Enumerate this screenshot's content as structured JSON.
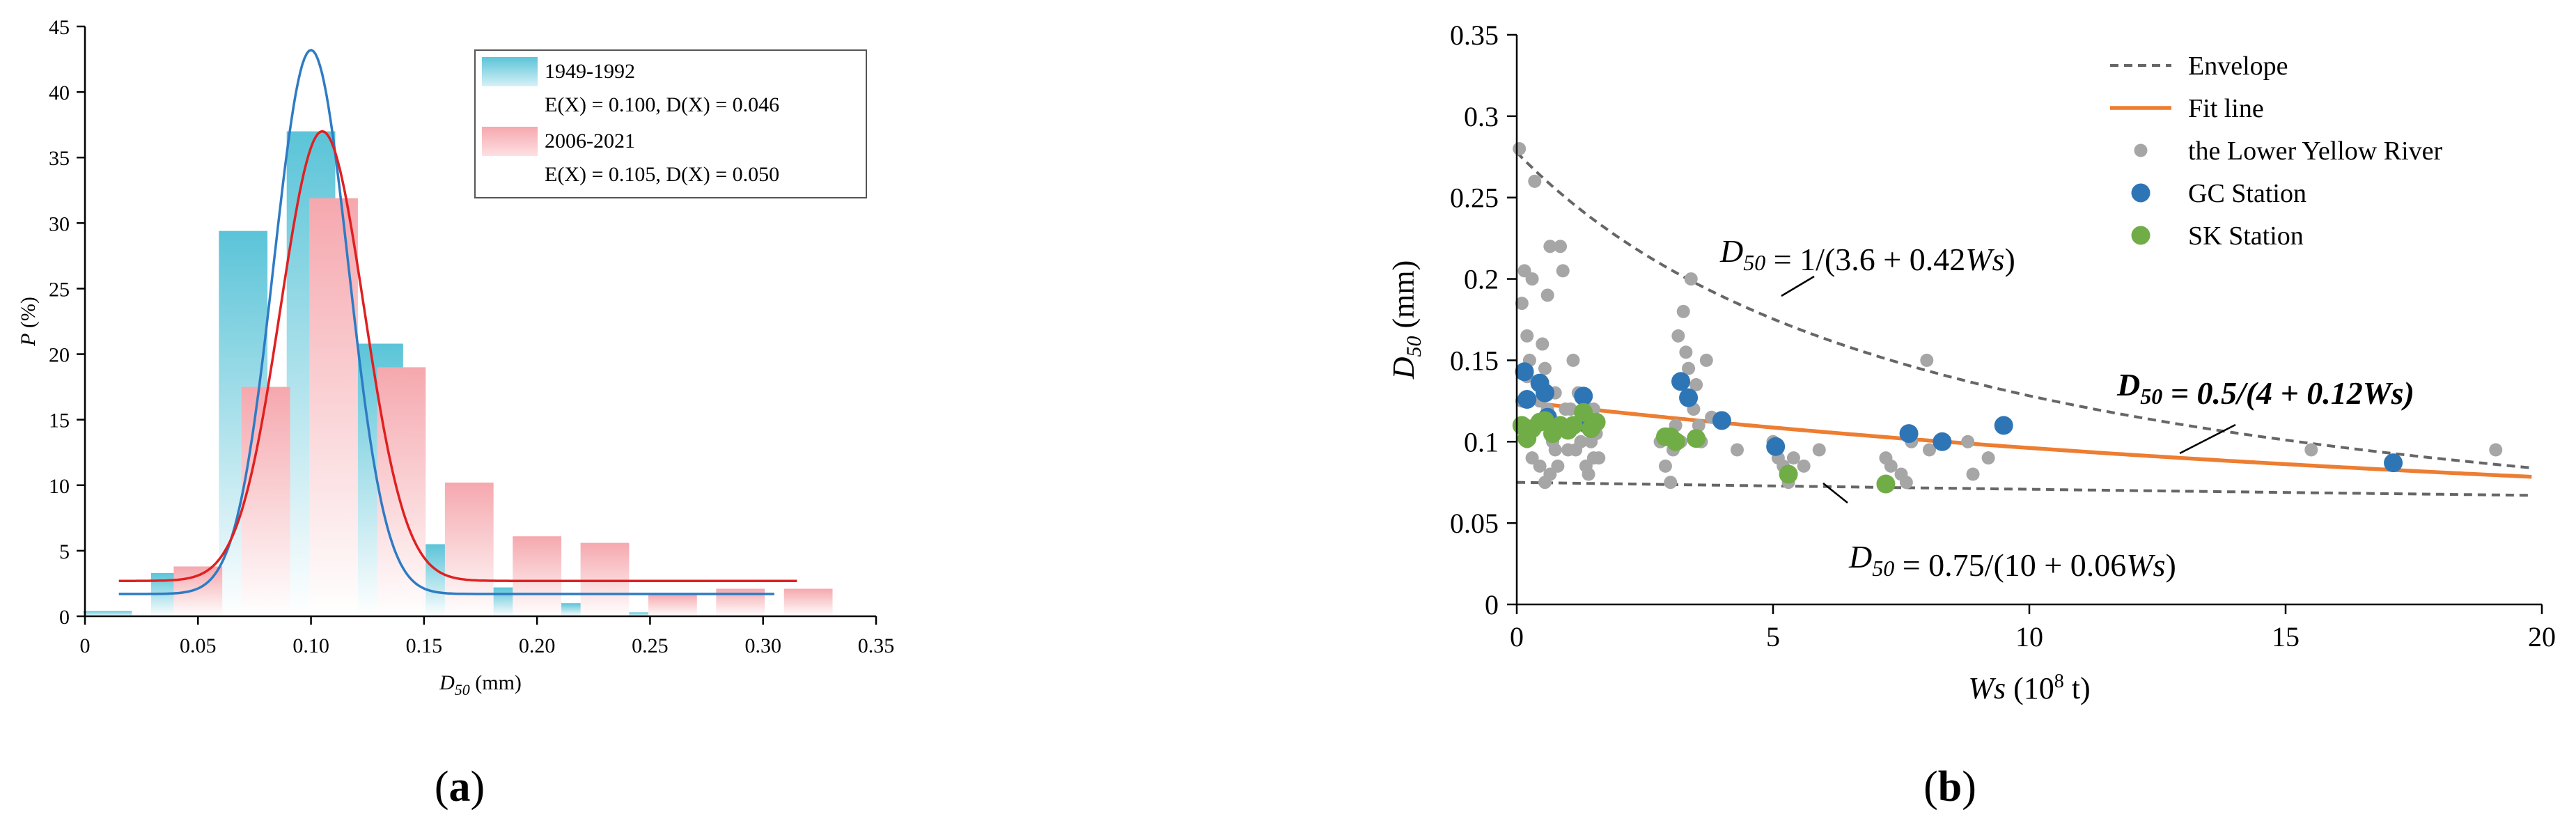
{
  "chart_data": [
    {
      "panel_label": "(a)",
      "type": "bar",
      "xlabel": "D50 (mm)",
      "ylabel": "P (%)",
      "xlim": [
        0,
        0.35
      ],
      "ylim": [
        0,
        45
      ],
      "xticks": [
        0,
        0.05,
        0.1,
        0.15,
        0.2,
        0.25,
        0.3,
        0.35
      ],
      "xtick_labels": [
        "0",
        "0.05",
        "0.10",
        "0.15",
        "0.20",
        "0.25",
        "0.30",
        "0.35"
      ],
      "yticks": [
        0,
        5,
        10,
        15,
        20,
        25,
        30,
        35,
        40,
        45
      ],
      "grid": false,
      "legend_position": "top-right",
      "series": [
        {
          "name": "1949-1992",
          "stats": "E(X) = 0.100, D(X) = 0.046",
          "color": "#5bc4d8",
          "bar_centers": [
            0.01,
            0.04,
            0.07,
            0.1,
            0.13,
            0.16,
            0.19,
            0.22,
            0.25,
            0.28
          ],
          "values": [
            0.4,
            3.3,
            29.4,
            37.0,
            20.8,
            5.5,
            2.2,
            1.0,
            0.3,
            0.0
          ],
          "fit_curve_color": "#2e7bc4",
          "fit_curve": {
            "mean": 0.1,
            "peak": 43.2,
            "sigma": 0.0165,
            "baseline": 1.7,
            "x_range": [
              0.015,
              0.305
            ]
          }
        },
        {
          "name": "2006-2021",
          "stats": "E(X) = 0.105, D(X) = 0.050",
          "color": "#f5a8ae",
          "bar_centers": [
            0.05,
            0.08,
            0.11,
            0.14,
            0.17,
            0.2,
            0.23,
            0.26,
            0.29,
            0.32
          ],
          "values": [
            3.8,
            17.5,
            31.9,
            19.0,
            10.2,
            6.1,
            5.6,
            1.7,
            2.1,
            2.1
          ],
          "fit_curve_color": "#e02020",
          "fit_curve": {
            "mean": 0.105,
            "peak": 37.0,
            "sigma": 0.0185,
            "baseline": 2.7,
            "x_range": [
              0.015,
              0.315
            ]
          }
        }
      ]
    },
    {
      "panel_label": "(b)",
      "type": "scatter",
      "xlabel": "Ws (10⁸ t)",
      "ylabel": "D50 (mm)",
      "xlim": [
        0,
        20
      ],
      "ylim": [
        0,
        0.35
      ],
      "xticks": [
        0,
        5,
        10,
        15,
        20
      ],
      "yticks": [
        0,
        0.05,
        0.1,
        0.15,
        0.2,
        0.25,
        0.3,
        0.35
      ],
      "ytick_labels": [
        "0",
        "0.05",
        "0.1",
        "0.15",
        "0.2",
        "0.25",
        "0.3",
        "0.35"
      ],
      "grid": false,
      "legend_position": "top-right",
      "legend": [
        "Envelope",
        "Fit line",
        "the Lower Yellow River",
        "GC Station",
        "SK Station"
      ],
      "annotations": [
        {
          "text": "D50 = 1/(3.6 + 0.42Ws)",
          "color": "#000000"
        },
        {
          "text": "D50 = 0.5/(4 + 0.12Ws)",
          "color": "#d86b1f"
        },
        {
          "text": "D50 = 0.75/(10 + 0.06Ws)",
          "color": "#000000"
        }
      ],
      "lines": [
        {
          "name": "Envelope",
          "formula": "1/(3.6+0.42x)",
          "x_range": [
            0,
            19.8
          ],
          "color": "#666666",
          "dash": true
        },
        {
          "name": "Envelope",
          "formula": "0.75/(10+0.06x)",
          "x_range": [
            0,
            19.8
          ],
          "color": "#666666",
          "dash": true
        },
        {
          "name": "Fit line",
          "formula": "0.5/(4+0.12x)",
          "x_range": [
            0,
            19.8
          ],
          "color": "#ed7d31",
          "dash": false
        }
      ],
      "series": [
        {
          "name": "the Lower Yellow River",
          "color": "#a6a6a6",
          "points": [
            [
              0.05,
              0.28
            ],
            [
              0.1,
              0.185
            ],
            [
              0.15,
              0.205
            ],
            [
              0.2,
              0.165
            ],
            [
              0.25,
              0.15
            ],
            [
              0.3,
              0.2
            ],
            [
              0.35,
              0.26
            ],
            [
              0.4,
              0.11
            ],
            [
              0.45,
              0.125
            ],
            [
              0.5,
              0.16
            ],
            [
              0.55,
              0.145
            ],
            [
              0.6,
              0.12
            ],
            [
              0.6,
              0.19
            ],
            [
              0.65,
              0.22
            ],
            [
              0.7,
              0.1
            ],
            [
              0.75,
              0.095
            ],
            [
              0.8,
              0.085
            ],
            [
              0.85,
              0.22
            ],
            [
              0.9,
              0.205
            ],
            [
              0.95,
              0.11
            ],
            [
              1.0,
              0.095
            ],
            [
              1.05,
              0.12
            ],
            [
              1.1,
              0.15
            ],
            [
              1.2,
              0.13
            ],
            [
              1.25,
              0.1
            ],
            [
              1.3,
              0.11
            ],
            [
              1.35,
              0.085
            ],
            [
              1.4,
              0.12
            ],
            [
              1.45,
              0.1
            ],
            [
              1.5,
              0.09
            ],
            [
              0.2,
              0.1
            ],
            [
              0.3,
              0.09
            ],
            [
              0.45,
              0.085
            ],
            [
              0.55,
              0.075
            ],
            [
              0.65,
              0.08
            ],
            [
              0.75,
              0.13
            ],
            [
              0.95,
              0.12
            ],
            [
              1.15,
              0.095
            ],
            [
              1.4,
              0.08
            ],
            [
              1.5,
              0.12
            ],
            [
              1.55,
              0.105
            ],
            [
              1.6,
              0.09
            ],
            [
              0.1,
              0.125
            ],
            [
              0.2,
              0.14
            ],
            [
              2.8,
              0.1
            ],
            [
              2.9,
              0.085
            ],
            [
              3.0,
              0.075
            ],
            [
              3.05,
              0.095
            ],
            [
              3.1,
              0.11
            ],
            [
              3.15,
              0.165
            ],
            [
              3.2,
              0.1
            ],
            [
              3.25,
              0.18
            ],
            [
              3.3,
              0.155
            ],
            [
              3.35,
              0.145
            ],
            [
              3.4,
              0.2
            ],
            [
              3.45,
              0.12
            ],
            [
              3.5,
              0.135
            ],
            [
              3.55,
              0.11
            ],
            [
              3.6,
              0.1
            ],
            [
              3.7,
              0.15
            ],
            [
              3.8,
              0.115
            ],
            [
              4.3,
              0.095
            ],
            [
              5.0,
              0.1
            ],
            [
              5.1,
              0.09
            ],
            [
              5.2,
              0.085
            ],
            [
              5.3,
              0.075
            ],
            [
              5.4,
              0.09
            ],
            [
              5.6,
              0.085
            ],
            [
              5.9,
              0.095
            ],
            [
              7.2,
              0.09
            ],
            [
              7.3,
              0.085
            ],
            [
              7.5,
              0.08
            ],
            [
              7.6,
              0.075
            ],
            [
              7.7,
              0.1
            ],
            [
              8.0,
              0.15
            ],
            [
              8.05,
              0.095
            ],
            [
              8.8,
              0.1
            ],
            [
              8.9,
              0.08
            ],
            [
              9.2,
              0.09
            ],
            [
              15.5,
              0.095
            ],
            [
              19.1,
              0.095
            ]
          ]
        },
        {
          "name": "GC Station",
          "color": "#2e75b6",
          "points": [
            [
              0.15,
              0.143
            ],
            [
              0.2,
              0.126
            ],
            [
              0.45,
              0.136
            ],
            [
              0.55,
              0.13
            ],
            [
              0.6,
              0.115
            ],
            [
              1.3,
              0.128
            ],
            [
              1.4,
              0.11
            ],
            [
              1.45,
              0.11
            ],
            [
              3.2,
              0.137
            ],
            [
              3.35,
              0.127
            ],
            [
              4.0,
              0.113
            ],
            [
              5.05,
              0.097
            ],
            [
              7.65,
              0.105
            ],
            [
              8.3,
              0.1
            ],
            [
              9.5,
              0.11
            ],
            [
              17.1,
              0.087
            ]
          ]
        },
        {
          "name": "SK Station",
          "color": "#70ad47",
          "points": [
            [
              0.1,
              0.11
            ],
            [
              0.2,
              0.102
            ],
            [
              0.3,
              0.108
            ],
            [
              0.45,
              0.112
            ],
            [
              0.55,
              0.113
            ],
            [
              0.7,
              0.105
            ],
            [
              0.85,
              0.11
            ],
            [
              1.0,
              0.107
            ],
            [
              1.1,
              0.11
            ],
            [
              1.3,
              0.118
            ],
            [
              1.45,
              0.108
            ],
            [
              1.55,
              0.112
            ],
            [
              2.9,
              0.103
            ],
            [
              3.0,
              0.103
            ],
            [
              3.1,
              0.1
            ],
            [
              3.5,
              0.102
            ],
            [
              5.3,
              0.08
            ],
            [
              7.2,
              0.074
            ]
          ]
        }
      ]
    }
  ]
}
